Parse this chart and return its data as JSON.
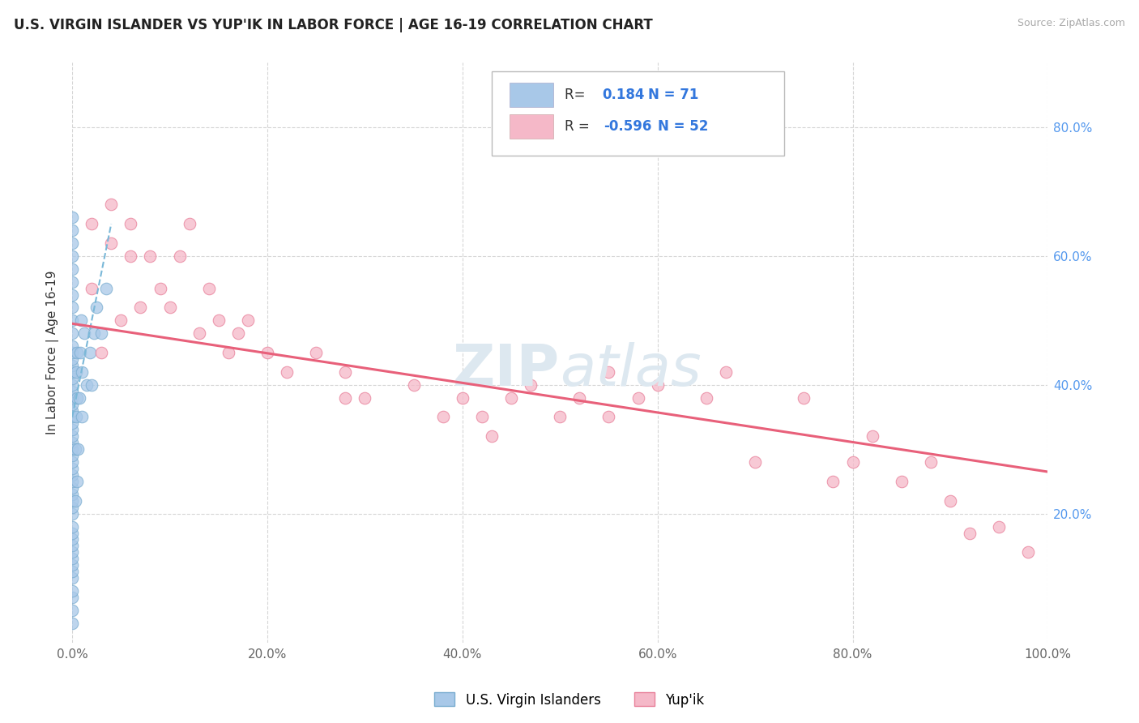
{
  "title": "U.S. VIRGIN ISLANDER VS YUP'IK IN LABOR FORCE | AGE 16-19 CORRELATION CHART",
  "source": "Source: ZipAtlas.com",
  "ylabel": "In Labor Force | Age 16-19",
  "xlim": [
    0.0,
    1.0
  ],
  "ylim": [
    0.0,
    0.9
  ],
  "x_tick_labels": [
    "0.0%",
    "20.0%",
    "40.0%",
    "60.0%",
    "80.0%",
    "100.0%"
  ],
  "x_tick_vals": [
    0.0,
    0.2,
    0.4,
    0.6,
    0.8,
    1.0
  ],
  "y_tick_vals": [
    0.2,
    0.4,
    0.6,
    0.8
  ],
  "right_y_tick_labels": [
    "20.0%",
    "40.0%",
    "60.0%",
    "80.0%"
  ],
  "legend_labels": [
    "U.S. Virgin Islanders",
    "Yup'ik"
  ],
  "R_vi": 0.184,
  "N_vi": 71,
  "R_yupik": -0.596,
  "N_yupik": 52,
  "blue_scatter_color": "#a8c8e8",
  "pink_scatter_color": "#f5b8c8",
  "blue_edge_color": "#7aadd0",
  "pink_edge_color": "#e8809a",
  "blue_line_color": "#7ab8d8",
  "pink_line_color": "#e8607a",
  "legend_val_color": "#3377dd",
  "watermark_color": "#dde8f0",
  "background_color": "#ffffff",
  "grid_color": "#cccccc",
  "vi_scatter_x": [
    0.0,
    0.0,
    0.0,
    0.0,
    0.0,
    0.0,
    0.0,
    0.0,
    0.0,
    0.0,
    0.0,
    0.0,
    0.0,
    0.0,
    0.0,
    0.0,
    0.0,
    0.0,
    0.0,
    0.0,
    0.0,
    0.0,
    0.0,
    0.0,
    0.0,
    0.0,
    0.0,
    0.0,
    0.0,
    0.0,
    0.0,
    0.0,
    0.0,
    0.0,
    0.0,
    0.0,
    0.0,
    0.0,
    0.0,
    0.0,
    0.0,
    0.0,
    0.0,
    0.0,
    0.0,
    0.0,
    0.0,
    0.0,
    0.0,
    0.0,
    0.003,
    0.003,
    0.004,
    0.004,
    0.005,
    0.005,
    0.005,
    0.006,
    0.007,
    0.008,
    0.009,
    0.01,
    0.01,
    0.012,
    0.015,
    0.018,
    0.02,
    0.022,
    0.025,
    0.03,
    0.035
  ],
  "vi_scatter_y": [
    0.03,
    0.05,
    0.07,
    0.08,
    0.1,
    0.11,
    0.12,
    0.13,
    0.14,
    0.15,
    0.16,
    0.17,
    0.18,
    0.2,
    0.21,
    0.22,
    0.23,
    0.24,
    0.25,
    0.26,
    0.27,
    0.28,
    0.29,
    0.3,
    0.31,
    0.32,
    0.33,
    0.34,
    0.35,
    0.36,
    0.37,
    0.38,
    0.39,
    0.4,
    0.41,
    0.42,
    0.43,
    0.44,
    0.45,
    0.46,
    0.48,
    0.5,
    0.52,
    0.54,
    0.56,
    0.58,
    0.6,
    0.62,
    0.64,
    0.66,
    0.22,
    0.3,
    0.35,
    0.42,
    0.25,
    0.38,
    0.45,
    0.3,
    0.38,
    0.45,
    0.5,
    0.35,
    0.42,
    0.48,
    0.4,
    0.45,
    0.4,
    0.48,
    0.52,
    0.48,
    0.55
  ],
  "yupik_scatter_x": [
    0.02,
    0.02,
    0.03,
    0.04,
    0.04,
    0.05,
    0.06,
    0.06,
    0.07,
    0.08,
    0.09,
    0.1,
    0.11,
    0.12,
    0.13,
    0.14,
    0.15,
    0.16,
    0.17,
    0.18,
    0.2,
    0.22,
    0.25,
    0.28,
    0.28,
    0.3,
    0.35,
    0.38,
    0.4,
    0.42,
    0.43,
    0.45,
    0.47,
    0.5,
    0.52,
    0.55,
    0.55,
    0.58,
    0.6,
    0.65,
    0.67,
    0.7,
    0.75,
    0.78,
    0.8,
    0.82,
    0.85,
    0.88,
    0.9,
    0.92,
    0.95,
    0.98
  ],
  "yupik_scatter_y": [
    0.55,
    0.65,
    0.45,
    0.62,
    0.68,
    0.5,
    0.6,
    0.65,
    0.52,
    0.6,
    0.55,
    0.52,
    0.6,
    0.65,
    0.48,
    0.55,
    0.5,
    0.45,
    0.48,
    0.5,
    0.45,
    0.42,
    0.45,
    0.38,
    0.42,
    0.38,
    0.4,
    0.35,
    0.38,
    0.35,
    0.32,
    0.38,
    0.4,
    0.35,
    0.38,
    0.35,
    0.42,
    0.38,
    0.4,
    0.38,
    0.42,
    0.28,
    0.38,
    0.25,
    0.28,
    0.32,
    0.25,
    0.28,
    0.22,
    0.17,
    0.18,
    0.14
  ],
  "vi_line_x": [
    0.0,
    0.04
  ],
  "vi_line_y": [
    0.35,
    0.65
  ],
  "yupik_line_x": [
    0.0,
    1.0
  ],
  "yupik_line_y_start": 0.495,
  "yupik_line_y_end": 0.265
}
